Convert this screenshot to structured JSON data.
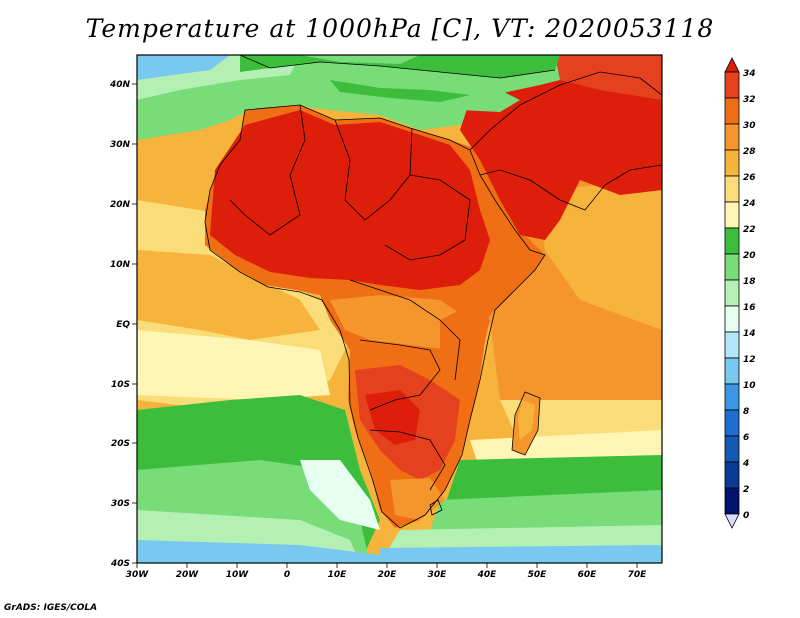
{
  "title": "Temperature at 1000hPa [C], VT: 2020053118",
  "credit": "GrADS: IGES/COLA",
  "map": {
    "lon_labels": [
      "30W",
      "20W",
      "10W",
      "0",
      "10E",
      "20E",
      "30E",
      "40E",
      "50E",
      "60E",
      "70E"
    ],
    "lat_labels": [
      "40N",
      "30N",
      "20N",
      "10N",
      "EQ",
      "10S",
      "20S",
      "30S",
      "40S"
    ]
  },
  "colorbar": {
    "levels": [
      "34",
      "32",
      "30",
      "28",
      "26",
      "24",
      "22",
      "20",
      "18",
      "16",
      "14",
      "12",
      "10",
      "8",
      "6",
      "4",
      "2",
      "0"
    ],
    "colors": [
      "#dc1e0a",
      "#e6411e",
      "#f06e14",
      "#f5962d",
      "#f7b43c",
      "#fadc78",
      "#fff5b4",
      "#3cbe3c",
      "#78dc78",
      "#b4f0b4",
      "#e6fff0",
      "#b4e6fa",
      "#78c8f0",
      "#3c96e6",
      "#1e6ed2",
      "#145ab4",
      "#0a3c96",
      "#00146e",
      "#dcdcff"
    ]
  }
}
